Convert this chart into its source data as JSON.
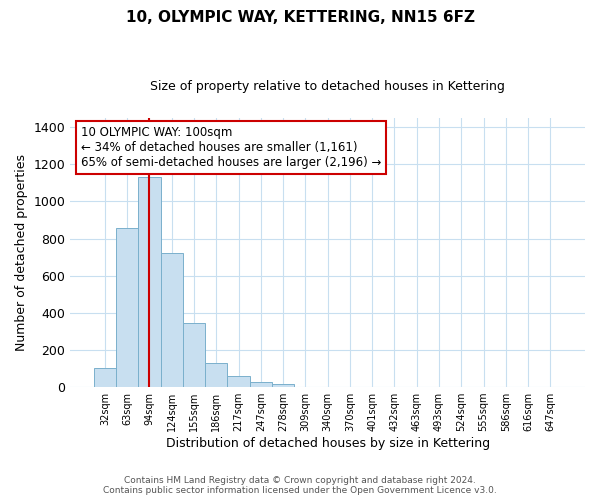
{
  "title": "10, OLYMPIC WAY, KETTERING, NN15 6FZ",
  "subtitle": "Size of property relative to detached houses in Kettering",
  "xlabel": "Distribution of detached houses by size in Kettering",
  "ylabel": "Number of detached properties",
  "bar_labels": [
    "32sqm",
    "63sqm",
    "94sqm",
    "124sqm",
    "155sqm",
    "186sqm",
    "217sqm",
    "247sqm",
    "278sqm",
    "309sqm",
    "340sqm",
    "370sqm",
    "401sqm",
    "432sqm",
    "463sqm",
    "493sqm",
    "524sqm",
    "555sqm",
    "586sqm",
    "616sqm",
    "647sqm"
  ],
  "bar_values": [
    105,
    855,
    1130,
    720,
    345,
    130,
    60,
    30,
    15,
    0,
    0,
    0,
    0,
    0,
    0,
    0,
    0,
    0,
    0,
    0,
    0
  ],
  "bar_color": "#c8dff0",
  "bar_edge_color": "#7ab0cc",
  "vline_bar_index": 2,
  "vline_color": "#cc0000",
  "ylim": [
    0,
    1450
  ],
  "yticks": [
    0,
    200,
    400,
    600,
    800,
    1000,
    1200,
    1400
  ],
  "annotation_title": "10 OLYMPIC WAY: 100sqm",
  "annotation_line1": "← 34% of detached houses are smaller (1,161)",
  "annotation_line2": "65% of semi-detached houses are larger (2,196) →",
  "annotation_box_color": "#ffffff",
  "annotation_box_edge": "#cc0000",
  "footer_line1": "Contains HM Land Registry data © Crown copyright and database right 2024.",
  "footer_line2": "Contains public sector information licensed under the Open Government Licence v3.0.",
  "bg_color": "#ffffff",
  "grid_color": "#c8dff0"
}
